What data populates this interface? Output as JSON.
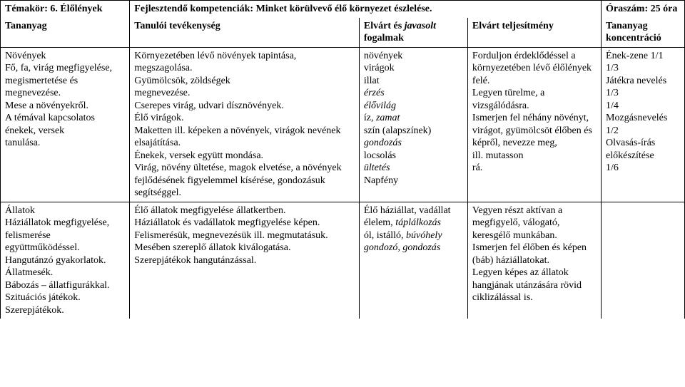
{
  "header": {
    "temakor_label": "Témakör: 6. Élőlények",
    "tananyag_label": "Tananyag",
    "fejlesztendo_label": "Fejlesztendő kompetenciák: Minket körülvevő élő környezet észlelése.",
    "tanuloi_label": "Tanulói tevékenység",
    "elvart_fogalmak_label_1": "Elvárt és ",
    "elvart_fogalmak_label_2": "javasolt",
    "elvart_fogalmak_label_3": " fogalmak",
    "elvart_teljesitmeny_label": "Elvárt teljesítmény",
    "oraszam_label": "Óraszám: 25 óra",
    "koncentracio_label": "Tananyag koncentráció"
  },
  "row1": {
    "col1": "Növények\nFő, fa, virág megfigyelése, megismertetése és megnevezése.\nMese a növényekről.\nA témával kapcsolatos énekek, versek\ntanulása.",
    "col2": "Környezetében lévő növények tapintása, megszagolása.\nGyümölcsök, zöldségek\nmegnevezése.\nCserepes virág, udvari dísznövények.\nÉlő virágok.\nMaketten ill. képeken a növények, virágok nevének elsajátítása.\nÉnekek, versek együtt mondása.\nVirág, növény ültetése, magok elvetése, a növények fejlődésének figyelemmel kísérése, gondozásuk segítséggel.",
    "col3_plain1": " növények\nvirágok\nillat",
    "col3_ital1": "érzés\nélővilág",
    "col3_plain2": "íz, ",
    "col3_ital2": "zamat",
    "col3_plain3": "szín (alapszínek)",
    "col3_ital3": "gondozás",
    "col3_plain4": "locsolás",
    "col3_ital4": "ültetés",
    "col3_plain5": "Napfény",
    "col4": " Forduljon érdeklődéssel a környezetében lévő élőlények felé.\nLegyen türelme, a vizsgálódásra.\nIsmerjen fel néhány növényt, virágot, gyümölcsöt élőben és képről, nevezze meg,\nill. mutasson\nrá.",
    "col5": "Ének-zene 1/1\n1/3\nJátékra nevelés 1/3\n1/4\nMozgásnevelés 1/2\nOlvasás-írás előkészítése\n1/6"
  },
  "row2": {
    "col1": "Állatok\nHáziállatok megfigyelése, felismerése együttműködéssel.\nHangutánzó gyakorlatok.\nÁllatmesék.\nBábozás – állatfigurákkal.\nSzituációs játékok.\nSzerepjátékok.",
    "col2": "Élő állatok megfigyelése állatkertben.\nHáziállatok és vadállatok megfigyelése képen.\nFelismerésük, megnevezésük ill. megmutatásuk.\nMesében szereplő állatok kiválogatása.\nSzerepjátékok hangutánzással.",
    "col3_plain1": "Élő háziállat, vadállat\nélelem, ",
    "col3_ital1": "táplálkozás",
    "col3_plain2": "ól, istálló, ",
    "col3_ital2": "búvóhely\ngondozó, gondozás",
    "col4": "Vegyen részt aktívan a megfigyelő, válogató, keresgélő munkában.\nIsmerjen fel élőben és képen (báb) háziállatokat.\nLegyen képes az állatok hangjának utánzására rövid ciklizálással is.",
    "col5": ""
  }
}
